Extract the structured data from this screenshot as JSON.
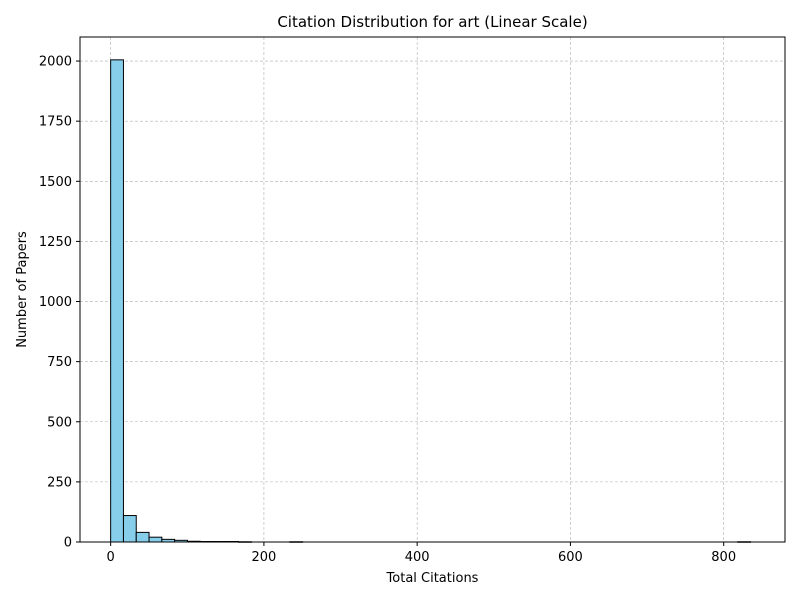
{
  "chart_data": {
    "type": "bar",
    "title": "Citation Distribution for art (Linear Scale)",
    "xlabel": "Total Citations",
    "ylabel": "Number of Papers",
    "xlim": [
      -40,
      880
    ],
    "ylim": [
      0,
      2100
    ],
    "xticks": [
      0,
      200,
      400,
      600,
      800
    ],
    "yticks": [
      0,
      250,
      500,
      750,
      1000,
      1250,
      1500,
      1750,
      2000
    ],
    "grid": true,
    "bar_color": "#87CEEB",
    "edge_color": "#000000",
    "bins": [
      {
        "x0": 0,
        "x1": 16.7,
        "count": 2005
      },
      {
        "x0": 16.7,
        "x1": 33.4,
        "count": 110
      },
      {
        "x0": 33.4,
        "x1": 50.1,
        "count": 40
      },
      {
        "x0": 50.1,
        "x1": 66.8,
        "count": 20
      },
      {
        "x0": 66.8,
        "x1": 83.5,
        "count": 11
      },
      {
        "x0": 83.5,
        "x1": 100.2,
        "count": 7
      },
      {
        "x0": 100.2,
        "x1": 116.9,
        "count": 3
      },
      {
        "x0": 116.9,
        "x1": 133.6,
        "count": 2
      },
      {
        "x0": 133.6,
        "x1": 150.3,
        "count": 2
      },
      {
        "x0": 150.3,
        "x1": 167.0,
        "count": 2
      },
      {
        "x0": 167.0,
        "x1": 183.7,
        "count": 1
      },
      {
        "x0": 233.8,
        "x1": 250.5,
        "count": 1
      },
      {
        "x0": 818.3,
        "x1": 835.0,
        "count": 1
      }
    ]
  }
}
